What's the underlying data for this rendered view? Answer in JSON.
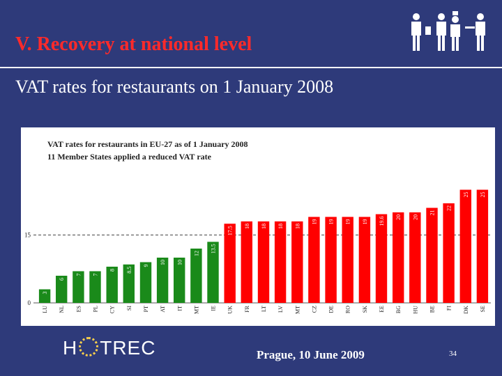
{
  "slide": {
    "title": "V. Recovery at national level",
    "subtitle": "VAT rates for restaurants on 1 January 2008",
    "footer_date": "Prague, 10 June 2009",
    "slide_number": "34",
    "logo_text_left": "H",
    "logo_text_right": "TREC"
  },
  "colors": {
    "background": "#2e3a7a",
    "title": "#ff2a2a",
    "reduced": "#1a8a1a",
    "standard": "#ff0000"
  },
  "chart_data": {
    "type": "bar",
    "title": "VAT rates for restaurants in EU-27 as of 1 January 2008",
    "title_underlined_word": "restaurants",
    "subtitle": "11 Member States applied a reduced VAT rate",
    "categories": [
      "LU",
      "NL",
      "ES",
      "PL",
      "CY",
      "SI",
      "PT",
      "AT",
      "IT",
      "MT",
      "IE",
      "UK",
      "FR",
      "LT",
      "LV",
      "MT",
      "CZ",
      "DE",
      "RO",
      "SK",
      "EE",
      "BG",
      "HU",
      "BE",
      "FI",
      "DK",
      "SE"
    ],
    "values": [
      3,
      6,
      7,
      7,
      8,
      8.5,
      9,
      10,
      10,
      12,
      13.5,
      17.5,
      18,
      18,
      18,
      18,
      19,
      19,
      19,
      19,
      19.6,
      20,
      20,
      21,
      22,
      25,
      25
    ],
    "value_labels": [
      "3",
      "6",
      "7",
      "7",
      "8",
      "8.5",
      "9",
      "10",
      "10",
      "12",
      "13.5",
      "17.5",
      "18",
      "18",
      "18",
      "18",
      "19",
      "19",
      "19",
      "19",
      "19.6",
      "20",
      "20",
      "21",
      "22",
      "25",
      "25"
    ],
    "groups": [
      "reduced",
      "reduced",
      "reduced",
      "reduced",
      "reduced",
      "reduced",
      "reduced",
      "reduced",
      "reduced",
      "reduced",
      "reduced",
      "standard",
      "standard",
      "standard",
      "standard",
      "standard",
      "standard",
      "standard",
      "standard",
      "standard",
      "standard",
      "standard",
      "standard",
      "standard",
      "standard",
      "standard",
      "standard"
    ],
    "y_ticks": [
      "0",
      "15"
    ],
    "reference_line": 15,
    "ylim": [
      0,
      26
    ],
    "grid": false
  }
}
